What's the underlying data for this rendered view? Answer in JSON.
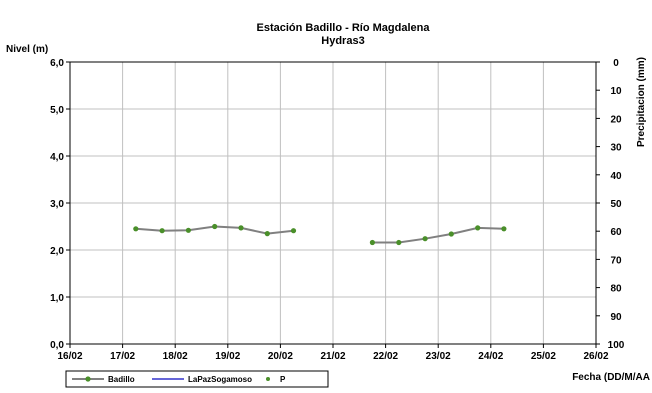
{
  "chart_data": {
    "type": "line",
    "title": "Estación Badillo - Río Magdalena",
    "subtitle": "Hydras3",
    "ylabel": "Nivel (m)",
    "y2label": "Precipitacion (mm)",
    "xlabel": "Fecha (DD/M/AA",
    "x_ticks": [
      "16/02",
      "17/02",
      "18/02",
      "19/02",
      "20/02",
      "21/02",
      "22/02",
      "23/02",
      "24/02",
      "25/02",
      "26/02"
    ],
    "y_ticks": [
      "0,0",
      "1,0",
      "2,0",
      "3,0",
      "4,0",
      "5,0",
      "6,0"
    ],
    "y2_ticks": [
      "0",
      "10",
      "20",
      "30",
      "40",
      "50",
      "60",
      "70",
      "80",
      "90",
      "100"
    ],
    "ylim": [
      0,
      6
    ],
    "y2lim": [
      0,
      100
    ],
    "xlim_days": [
      16,
      26
    ],
    "grid": true,
    "legend_position": "bottom-left",
    "series": [
      {
        "name": "Badillo",
        "color": "#808080",
        "marker_color": "#4a8f2a",
        "x": [
          17.25,
          17.75,
          18.25,
          18.75,
          19.25,
          19.75,
          20.25,
          null,
          21.75,
          22.25,
          22.75,
          23.25,
          23.75,
          24.25
        ],
        "values": [
          2.45,
          2.41,
          2.42,
          2.5,
          2.47,
          2.35,
          2.41,
          null,
          2.16,
          2.16,
          2.24,
          2.34,
          2.47,
          2.45
        ]
      },
      {
        "name": "LaPazSogamoso",
        "color": "#3333cc",
        "x": [],
        "values": []
      },
      {
        "name": "P",
        "color": "#4a8f2a",
        "x": [],
        "values": []
      }
    ]
  }
}
